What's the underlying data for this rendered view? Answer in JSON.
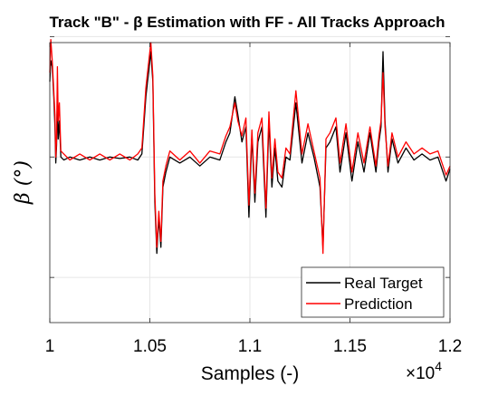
{
  "chart_data": {
    "type": "line",
    "title": "Track \"B\" - β Estimation with FF - All Tracks Approach",
    "xlabel": "Samples (-)",
    "ylabel": "β (°)",
    "x_exponent_label": "×10",
    "x_exponent_power": "4",
    "xlim": [
      1.0,
      1.2
    ],
    "ylim": [
      -5.5,
      3.8
    ],
    "x_ticks": [
      1,
      1.05,
      1.1,
      1.15,
      1.2
    ],
    "x_tick_labels": [
      "1",
      "1.05",
      "1.1",
      "1.15",
      "1.2"
    ],
    "y_ticks": [
      -4,
      0,
      4
    ],
    "y_tick_labels": [
      "",
      "",
      ""
    ],
    "grid": true,
    "legend_position": "bottom-right",
    "colors": {
      "real": "#000000",
      "prediction": "#ff0000",
      "grid": "#e6e6e6",
      "axis": "#262626"
    },
    "series": [
      {
        "name": "Real Target",
        "color": "#000000",
        "points": [
          [
            1.0,
            2.5
          ],
          [
            1.0005,
            3.2
          ],
          [
            1.0012,
            3.0
          ],
          [
            1.002,
            2.0
          ],
          [
            1.0026,
            1.0
          ],
          [
            1.003,
            -0.2
          ],
          [
            1.0034,
            0.4
          ],
          [
            1.0038,
            2.0
          ],
          [
            1.0042,
            0.6
          ],
          [
            1.0048,
            1.2
          ],
          [
            1.0055,
            0.0
          ],
          [
            1.007,
            -0.1
          ],
          [
            1.01,
            0.0
          ],
          [
            1.015,
            -0.1
          ],
          [
            1.02,
            0.0
          ],
          [
            1.025,
            -0.1
          ],
          [
            1.03,
            0.0
          ],
          [
            1.035,
            -0.05
          ],
          [
            1.04,
            0.0
          ],
          [
            1.044,
            -0.1
          ],
          [
            1.046,
            0.1
          ],
          [
            1.048,
            2.0
          ],
          [
            1.0505,
            3.5
          ],
          [
            1.0515,
            2.5
          ],
          [
            1.0525,
            -1.5
          ],
          [
            1.0535,
            -3.2
          ],
          [
            1.0545,
            -2.0
          ],
          [
            1.0555,
            -3.0
          ],
          [
            1.0565,
            -1.0
          ],
          [
            1.058,
            -0.5
          ],
          [
            1.06,
            0.0
          ],
          [
            1.065,
            -0.2
          ],
          [
            1.07,
            0.0
          ],
          [
            1.075,
            -0.3
          ],
          [
            1.08,
            0.0
          ],
          [
            1.085,
            -0.1
          ],
          [
            1.088,
            0.5
          ],
          [
            1.09,
            0.8
          ],
          [
            1.0925,
            2.0
          ],
          [
            1.094,
            1.4
          ],
          [
            1.096,
            0.5
          ],
          [
            1.098,
            1.0
          ],
          [
            1.0995,
            -2.0
          ],
          [
            1.101,
            0.7
          ],
          [
            1.1025,
            -1.5
          ],
          [
            1.104,
            0.5
          ],
          [
            1.106,
            1.0
          ],
          [
            1.108,
            -2.0
          ],
          [
            1.1095,
            1.2
          ],
          [
            1.111,
            -1.0
          ],
          [
            1.1125,
            0.3
          ],
          [
            1.114,
            -0.8
          ],
          [
            1.116,
            -1.0
          ],
          [
            1.118,
            0.0
          ],
          [
            1.12,
            -0.1
          ],
          [
            1.123,
            1.8
          ],
          [
            1.126,
            -0.2
          ],
          [
            1.129,
            0.8
          ],
          [
            1.132,
            0.0
          ],
          [
            1.135,
            -1.0
          ],
          [
            1.1365,
            -3.0
          ],
          [
            1.138,
            0.3
          ],
          [
            1.14,
            0.5
          ],
          [
            1.143,
            1.0
          ],
          [
            1.145,
            -0.5
          ],
          [
            1.148,
            0.8
          ],
          [
            1.151,
            -0.8
          ],
          [
            1.154,
            0.5
          ],
          [
            1.157,
            -0.5
          ],
          [
            1.16,
            0.8
          ],
          [
            1.163,
            -0.5
          ],
          [
            1.1645,
            0.5
          ],
          [
            1.1655,
            1.0
          ],
          [
            1.1665,
            3.5
          ],
          [
            1.1675,
            1.2
          ],
          [
            1.169,
            -0.5
          ],
          [
            1.171,
            0.6
          ],
          [
            1.174,
            -0.2
          ],
          [
            1.178,
            0.3
          ],
          [
            1.182,
            -0.1
          ],
          [
            1.186,
            0.1
          ],
          [
            1.19,
            -0.1
          ],
          [
            1.194,
            0.0
          ],
          [
            1.198,
            -0.8
          ],
          [
            1.2,
            -0.4
          ]
        ]
      },
      {
        "name": "Prediction",
        "color": "#ff0000",
        "points": [
          [
            1.0,
            2.8
          ],
          [
            1.0005,
            3.9
          ],
          [
            1.0012,
            3.2
          ],
          [
            1.002,
            2.2
          ],
          [
            1.0026,
            1.4
          ],
          [
            1.003,
            0.0
          ],
          [
            1.0034,
            0.6
          ],
          [
            1.0038,
            3.0
          ],
          [
            1.0042,
            1.2
          ],
          [
            1.0048,
            1.8
          ],
          [
            1.0055,
            0.2
          ],
          [
            1.007,
            0.1
          ],
          [
            1.01,
            -0.1
          ],
          [
            1.015,
            0.1
          ],
          [
            1.02,
            -0.1
          ],
          [
            1.025,
            0.1
          ],
          [
            1.03,
            -0.1
          ],
          [
            1.035,
            0.1
          ],
          [
            1.04,
            -0.1
          ],
          [
            1.044,
            0.1
          ],
          [
            1.046,
            0.3
          ],
          [
            1.048,
            2.3
          ],
          [
            1.0505,
            3.8
          ],
          [
            1.0515,
            2.7
          ],
          [
            1.0525,
            -1.2
          ],
          [
            1.0535,
            -3.0
          ],
          [
            1.0545,
            -1.8
          ],
          [
            1.0555,
            -2.8
          ],
          [
            1.0565,
            -0.8
          ],
          [
            1.058,
            -0.3
          ],
          [
            1.06,
            0.2
          ],
          [
            1.065,
            -0.1
          ],
          [
            1.07,
            0.2
          ],
          [
            1.075,
            -0.2
          ],
          [
            1.08,
            0.2
          ],
          [
            1.085,
            0.1
          ],
          [
            1.088,
            0.7
          ],
          [
            1.09,
            1.0
          ],
          [
            1.0925,
            1.8
          ],
          [
            1.094,
            1.2
          ],
          [
            1.096,
            0.7
          ],
          [
            1.098,
            1.3
          ],
          [
            1.0995,
            -1.6
          ],
          [
            1.101,
            0.9
          ],
          [
            1.1025,
            -1.2
          ],
          [
            1.104,
            0.8
          ],
          [
            1.106,
            1.3
          ],
          [
            1.108,
            -1.7
          ],
          [
            1.1095,
            1.5
          ],
          [
            1.111,
            -0.7
          ],
          [
            1.1125,
            0.6
          ],
          [
            1.114,
            -0.5
          ],
          [
            1.116,
            -0.7
          ],
          [
            1.118,
            0.3
          ],
          [
            1.12,
            0.1
          ],
          [
            1.123,
            2.2
          ],
          [
            1.126,
            0.1
          ],
          [
            1.129,
            1.1
          ],
          [
            1.132,
            0.2
          ],
          [
            1.135,
            -0.7
          ],
          [
            1.1365,
            -3.2
          ],
          [
            1.138,
            0.6
          ],
          [
            1.14,
            0.8
          ],
          [
            1.143,
            1.3
          ],
          [
            1.145,
            -0.2
          ],
          [
            1.148,
            1.1
          ],
          [
            1.151,
            -0.5
          ],
          [
            1.154,
            0.8
          ],
          [
            1.157,
            -0.2
          ],
          [
            1.16,
            1.0
          ],
          [
            1.163,
            -0.3
          ],
          [
            1.1645,
            0.7
          ],
          [
            1.1655,
            1.2
          ],
          [
            1.1665,
            2.8
          ],
          [
            1.1675,
            1.0
          ],
          [
            1.169,
            -0.3
          ],
          [
            1.171,
            0.8
          ],
          [
            1.174,
            0.0
          ],
          [
            1.178,
            0.5
          ],
          [
            1.182,
            0.1
          ],
          [
            1.186,
            0.3
          ],
          [
            1.19,
            0.1
          ],
          [
            1.194,
            0.2
          ],
          [
            1.198,
            -0.6
          ],
          [
            1.2,
            -0.3
          ]
        ]
      }
    ]
  }
}
